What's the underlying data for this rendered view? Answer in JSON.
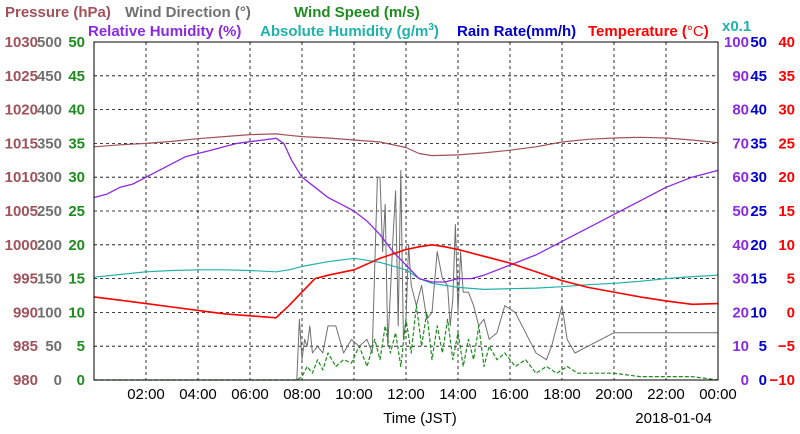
{
  "chart_data": {
    "type": "line",
    "colors": {
      "pressure": "#A0525A",
      "wind_direction": "#707070",
      "wind_speed": "#1E8C1E",
      "relative_humidity": "#8A2BE2",
      "absolute_humidity": "#20B2AA",
      "rain_rate": "#0000CC",
      "temperature": "#FF0000"
    },
    "legend": {
      "pressure": "Pressure (hPa)",
      "wind_direction": "Wind Direction (°)",
      "wind_speed": "Wind Speed (m/s)",
      "relative_humidity": "Relative Humidity (%)",
      "absolute_humidity_prefix": "Absolute Humidity (g/m",
      "absolute_humidity_sup": "3",
      "absolute_humidity_suffix": ")",
      "rain_rate": "Rain Rate(mm/h)",
      "temperature_prefix": "Temperature (",
      "temperature_unit": "°C",
      "temperature_suffix": ")",
      "scale_note": "x0.1"
    },
    "xlabel": "Time (JST)",
    "date": "2018-01-04",
    "xlim": [
      0,
      24
    ],
    "x_ticks": [
      "02:00",
      "04:00",
      "06:00",
      "08:00",
      "10:00",
      "12:00",
      "14:00",
      "16:00",
      "18:00",
      "20:00",
      "22:00",
      "00:00"
    ],
    "axes": {
      "pressure": {
        "ticks": [
          "1030",
          "1025",
          "1020",
          "1015",
          "1010",
          "1005",
          "1000",
          "995",
          "990",
          "985",
          "980"
        ],
        "ylim": [
          980,
          1030
        ]
      },
      "wind_direction": {
        "ticks": [
          "500",
          "450",
          "400",
          "350",
          "300",
          "250",
          "200",
          "150",
          "100",
          "50",
          "0"
        ],
        "ylim": [
          0,
          500
        ]
      },
      "wind_speed": {
        "ticks": [
          "50",
          "45",
          "40",
          "35",
          "30",
          "25",
          "20",
          "15",
          "10",
          "5",
          "0"
        ],
        "ylim": [
          0,
          50
        ]
      },
      "relative_humidity": {
        "ticks": [
          "100",
          "90",
          "80",
          "70",
          "60",
          "50",
          "40",
          "30",
          "20",
          "10",
          "0"
        ],
        "ylim": [
          0,
          100
        ]
      },
      "rain_rate": {
        "ticks": [
          "50",
          "45",
          "40",
          "35",
          "30",
          "25",
          "20",
          "15",
          "10",
          "5",
          "0"
        ],
        "ylim": [
          0,
          50
        ]
      },
      "temperature": {
        "ticks": [
          "40",
          "35",
          "30",
          "25",
          "20",
          "15",
          "10",
          "5",
          "0",
          "−5",
          "−10"
        ],
        "ylim": [
          -10,
          40
        ]
      }
    },
    "series": [
      {
        "name": "Pressure (hPa)",
        "axis": "pressure",
        "x": [
          0,
          1,
          2,
          3,
          4,
          5,
          6,
          7,
          7.5,
          8,
          9,
          10,
          11,
          12,
          12.5,
          13,
          14,
          15,
          16,
          17,
          18,
          19,
          20,
          21,
          22,
          23,
          24
        ],
        "y": [
          1014.5,
          1014.8,
          1015,
          1015.3,
          1015.7,
          1016,
          1016.3,
          1016.4,
          1016.2,
          1016,
          1015.8,
          1015.5,
          1015.2,
          1014.4,
          1013.5,
          1013.2,
          1013.3,
          1013.6,
          1014,
          1014.5,
          1015.2,
          1015.6,
          1015.8,
          1015.9,
          1015.8,
          1015.5,
          1015.1
        ]
      },
      {
        "name": "Relative Humidity (%)",
        "axis": "relative_humidity",
        "x": [
          0,
          0.5,
          1,
          1.5,
          2,
          2.5,
          3,
          3.5,
          4,
          4.5,
          5,
          5.5,
          6,
          6.5,
          7,
          7.3,
          7.6,
          8,
          8.5,
          9,
          9.5,
          10,
          10.5,
          11,
          11.5,
          12,
          12.5,
          13,
          13.5,
          14,
          14.5,
          15,
          16,
          17,
          18,
          19,
          20,
          21,
          22,
          23,
          24
        ],
        "y": [
          54,
          55,
          57,
          58,
          60,
          62,
          64,
          66,
          67,
          68,
          69,
          70,
          70.5,
          71,
          71.5,
          70,
          65,
          60,
          57,
          54,
          52,
          50,
          47,
          43,
          38,
          34,
          30,
          29,
          29,
          30,
          30,
          31,
          34,
          37,
          41,
          45,
          49,
          53,
          57,
          60,
          62
        ]
      },
      {
        "name": "Absolute Humidity (g/m3)",
        "axis": "wind_speed",
        "x": [
          0,
          1,
          2,
          3,
          4,
          5,
          6,
          7,
          7.5,
          8,
          9,
          10,
          11,
          12,
          12.5,
          13,
          14,
          15,
          16,
          17,
          18,
          19,
          20,
          21,
          22,
          23,
          24
        ],
        "y": [
          15.2,
          15.6,
          16,
          16.2,
          16.3,
          16.3,
          16.2,
          16,
          16.3,
          16.8,
          17.5,
          18,
          17.4,
          16.3,
          15,
          14.3,
          13.7,
          13.4,
          13.5,
          13.6,
          13.8,
          14.1,
          14.3,
          14.6,
          15,
          15.3,
          15.5
        ]
      },
      {
        "name": "Temperature (°C)",
        "axis": "temperature",
        "x": [
          0,
          1,
          2,
          3,
          4,
          5,
          6,
          7,
          7.5,
          8,
          8.5,
          9,
          10,
          11,
          12,
          12.5,
          13,
          13.5,
          14,
          15,
          16,
          17,
          18,
          19,
          20,
          21,
          22,
          23,
          24
        ],
        "y": [
          2.3,
          1.8,
          1.3,
          0.8,
          0.3,
          -0.2,
          -0.5,
          -0.8,
          1,
          3,
          5,
          5.5,
          6.3,
          8,
          9.3,
          9.7,
          10,
          9.7,
          9.3,
          8.3,
          7.3,
          6,
          4.7,
          3.7,
          3,
          2.3,
          1.7,
          1.2,
          1.3
        ]
      },
      {
        "name": "Wind Direction (°)",
        "axis": "wind_direction",
        "x": [
          0,
          7.8,
          7.9,
          8.0,
          8.1,
          8.2,
          8.3,
          8.4,
          8.6,
          8.8,
          9.0,
          9.3,
          9.6,
          9.9,
          10.2,
          10.5,
          10.7,
          10.9,
          11.0,
          11.1,
          11.2,
          11.3,
          11.4,
          11.5,
          11.6,
          11.7,
          11.8,
          11.9,
          12.0,
          12.1,
          12.2,
          12.4,
          12.6,
          12.8,
          13.0,
          13.2,
          13.4,
          13.6,
          13.7,
          13.8,
          13.9,
          14.0,
          14.1,
          14.2,
          14.4,
          14.6,
          14.8,
          15.0,
          15.2,
          15.5,
          15.8,
          16.2,
          16.6,
          17.0,
          17.4,
          17.6,
          17.8,
          18.0,
          18.2,
          18.5,
          19,
          20,
          21,
          22,
          23,
          24
        ],
        "y": [
          0,
          0,
          90,
          30,
          60,
          50,
          80,
          40,
          50,
          40,
          80,
          80,
          40,
          60,
          50,
          60,
          40,
          300,
          300,
          190,
          260,
          50,
          130,
          210,
          280,
          80,
          310,
          60,
          90,
          200,
          140,
          110,
          140,
          90,
          100,
          190,
          150,
          140,
          80,
          120,
          230,
          100,
          190,
          130,
          130,
          110,
          80,
          90,
          60,
          70,
          110,
          100,
          70,
          40,
          30,
          50,
          80,
          110,
          60,
          40,
          50,
          70,
          70,
          70,
          70,
          70
        ]
      },
      {
        "name": "Wind Speed (m/s)",
        "axis": "wind_speed",
        "x": [
          0,
          7.8,
          8.0,
          8.2,
          8.4,
          8.6,
          8.8,
          9.0,
          9.3,
          9.6,
          9.9,
          10.2,
          10.5,
          10.8,
          11.0,
          11.2,
          11.4,
          11.6,
          11.8,
          12.0,
          12.2,
          12.4,
          12.6,
          12.8,
          13.0,
          13.2,
          13.4,
          13.6,
          13.8,
          14.0,
          14.2,
          14.4,
          14.6,
          14.8,
          15.0,
          15.2,
          15.5,
          15.8,
          16.2,
          16.6,
          17.0,
          17.4,
          17.8,
          18.2,
          18.6,
          19,
          20,
          21,
          22,
          23,
          24
        ],
        "y": [
          0,
          0,
          0.5,
          2,
          1,
          3,
          1.5,
          4,
          2,
          3,
          2.5,
          5,
          2,
          6,
          3,
          8,
          4,
          7,
          2,
          9,
          4,
          11,
          5,
          10,
          3,
          8,
          4,
          9,
          3,
          7,
          2,
          6,
          3,
          8,
          2,
          5,
          3,
          4,
          2,
          3,
          1,
          2,
          1,
          2,
          1,
          1,
          1,
          0.5,
          0.5,
          0.5,
          0
        ]
      }
    ]
  }
}
